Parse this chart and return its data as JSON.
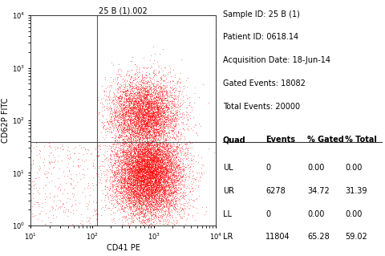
{
  "title": "25 B (1).002",
  "xlabel": "CD41 PE",
  "ylabel": "CD62P FITC",
  "xmin": 1.0,
  "xmax": 4.0,
  "ymin": 0.0,
  "ymax": 4.0,
  "gate_x": 2.08,
  "gate_y": 1.58,
  "sample_id": "Sample ID: 25 B (1)",
  "patient_id": "Patient ID: 0618.14",
  "acq_date": "Acquisition Date: 18-Jun-14",
  "gated_events": "Gated Events: 18082",
  "total_events": "Total Events: 20000",
  "table_headers": [
    "Quad",
    "Events",
    "% Gated",
    "% Total"
  ],
  "table_rows": [
    [
      "UL",
      "0",
      "0.00",
      "0.00"
    ],
    [
      "UR",
      "6278",
      "34.72",
      "31.39"
    ],
    [
      "LL",
      "0",
      "0.00",
      "0.00"
    ],
    [
      "LR",
      "11804",
      "65.28",
      "59.02"
    ]
  ],
  "dot_color": "#ff0000",
  "bg_color": "#ffffff",
  "seed": 42
}
